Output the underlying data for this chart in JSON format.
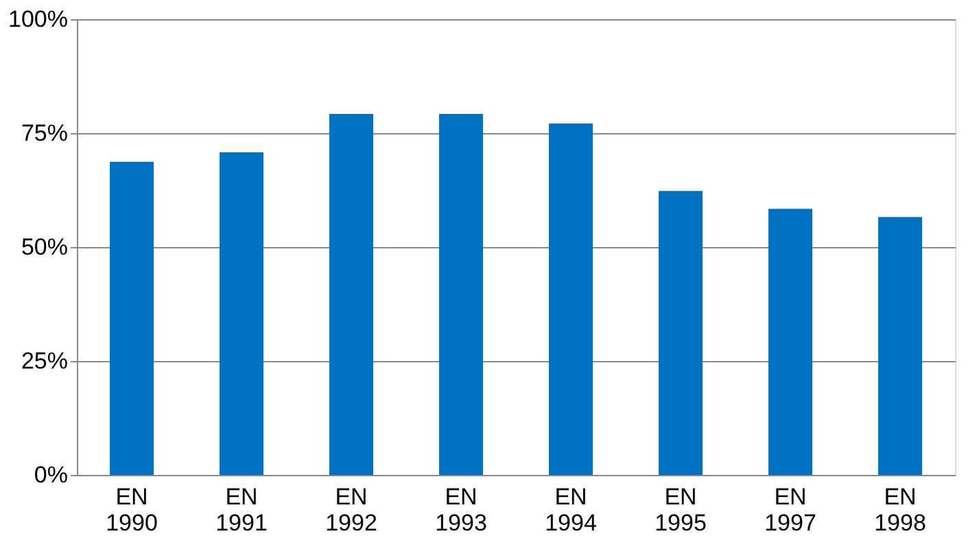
{
  "chart_data": {
    "type": "bar",
    "categories": [
      "EN 1990",
      "EN 1991",
      "EN 1992",
      "EN 1993",
      "EN 1994",
      "EN 1995",
      "EN 1997",
      "EN 1998"
    ],
    "values": [
      68.7,
      70.8,
      79.2,
      79.2,
      77.1,
      62.3,
      58.4,
      56.6
    ],
    "color": "#0070c0",
    "ylim": [
      0,
      100
    ],
    "yticks": [
      {
        "value": 0,
        "label": "0%"
      },
      {
        "value": 25,
        "label": "25%"
      },
      {
        "value": 50,
        "label": "50%"
      },
      {
        "value": 75,
        "label": "75%"
      },
      {
        "value": 100,
        "label": "100%"
      }
    ],
    "grid": "y"
  }
}
